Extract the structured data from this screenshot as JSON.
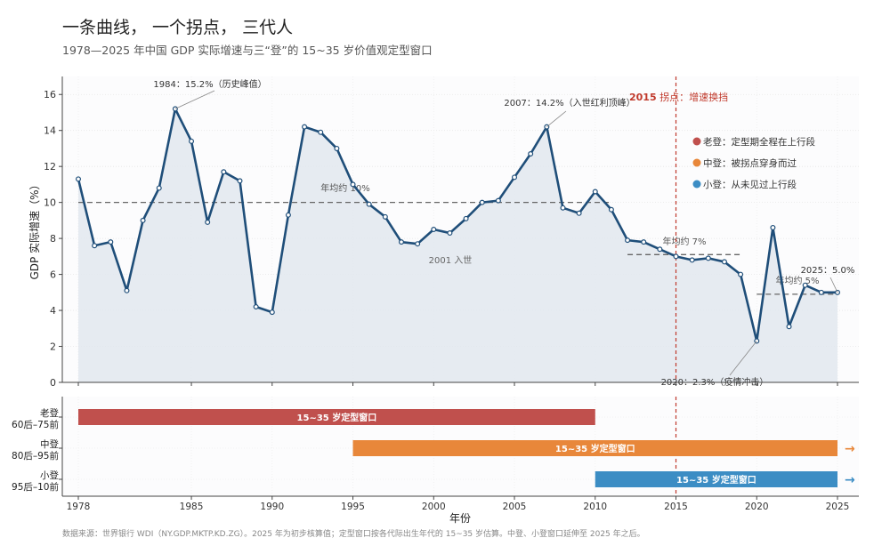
{
  "title": "一条曲线，  一个拐点，  三代人",
  "subtitle": "1978—2025 年中国 GDP 实际增速与三“登”的 15~35 岁价值观定型窗口",
  "footer": "数据来源：世界银行 WDI（NY.GDP.MKTP.KD.ZG）。2025 年为初步核算值；定型窗口按各代际出生年代的 15~35 岁估算。中登、小登窗口延伸至 2025 年之后。",
  "colors": {
    "line": "#1f4e79",
    "area": "#e2e8ef",
    "old": "#c0504d",
    "mid": "#e8873a",
    "young": "#3c8dc4",
    "turn": "#c0392b",
    "avg": "#666666"
  },
  "chart_data": {
    "type": "line",
    "xlabel": "年份",
    "ylabel": "GDP 实际增速（%）",
    "ylim": [
      0,
      17
    ],
    "yticks": [
      0,
      2,
      4,
      6,
      8,
      10,
      12,
      14,
      16
    ],
    "xticks": [
      1978,
      1985,
      1990,
      1995,
      2000,
      2005,
      2010,
      2015,
      2020,
      2025
    ],
    "series": [
      {
        "x": [
          1978,
          1979,
          1980,
          1981,
          1982,
          1983,
          1984,
          1985,
          1986,
          1987,
          1988,
          1989,
          1990,
          1991,
          1992,
          1993,
          1994,
          1995,
          1996,
          1997,
          1998,
          1999,
          2000,
          2001,
          2002,
          2003,
          2004,
          2005,
          2006,
          2007,
          2008,
          2009,
          2010,
          2011,
          2012,
          2013,
          2014,
          2015,
          2016,
          2017,
          2018,
          2019,
          2020,
          2021,
          2022,
          2023,
          2024,
          2025
        ],
        "values": [
          11.3,
          7.6,
          7.8,
          5.1,
          9.0,
          10.8,
          15.2,
          13.4,
          8.9,
          11.7,
          11.2,
          4.2,
          3.9,
          9.3,
          14.2,
          13.9,
          13.0,
          11.0,
          9.9,
          9.2,
          7.8,
          7.7,
          8.5,
          8.3,
          9.1,
          10.0,
          10.1,
          11.4,
          12.7,
          14.2,
          9.7,
          9.4,
          10.6,
          9.6,
          7.9,
          7.8,
          7.4,
          7.0,
          6.8,
          6.9,
          6.7,
          6.0,
          2.3,
          8.6,
          3.1,
          5.4,
          5.0,
          5.0
        ]
      }
    ],
    "grid": true,
    "turning_point": {
      "year": 2015,
      "label_year": "2015",
      "label_text": " 拐点：增速换挡"
    },
    "averages": [
      {
        "from": 1978,
        "to": 2011,
        "value": 10,
        "label": "年均约 10%"
      },
      {
        "from": 2012,
        "to": 2019,
        "value": 7.1,
        "label": "年均约 7%"
      },
      {
        "from": 2020,
        "to": 2025,
        "value": 4.9,
        "label": "年均约 5%"
      }
    ],
    "annotations": [
      {
        "year": 1984,
        "value": 15.2,
        "text": "1984：15.2%（历史峰值）"
      },
      {
        "year": 2007,
        "value": 14.2,
        "text": "2007：14.2%（入世红利顶峰）"
      },
      {
        "year": 2020,
        "value": 2.3,
        "text": "2020：2.3%（疫情冲击）"
      },
      {
        "year": 2025,
        "value": 5.0,
        "text": "2025：5.0%"
      },
      {
        "year": 2001,
        "value": 8.3,
        "text": "2001 入世"
      }
    ],
    "legend": {
      "placement": "top-right",
      "items": [
        {
          "color_key": "old",
          "text": "老登：定型期全程在上行段"
        },
        {
          "color_key": "mid",
          "text": "中登：被拐点穿身而过"
        },
        {
          "color_key": "young",
          "text": "小登：从未见过上行段"
        }
      ]
    },
    "windows": [
      {
        "name": "老登",
        "cohort": "60后–75前",
        "from": 1978,
        "to": 2010,
        "label": "15~35 岁定型窗口",
        "color_key": "old",
        "arrow": ""
      },
      {
        "name": "中登",
        "cohort": "80后–95前",
        "from": 1995,
        "to": 2025,
        "label": "15~35 岁定型窗口",
        "color_key": "mid",
        "arrow": "→"
      },
      {
        "name": "小登",
        "cohort": "95后–10前",
        "from": 2010,
        "to": 2025,
        "label": "15~35 岁定型窗口",
        "color_key": "young",
        "arrow": "→"
      }
    ]
  }
}
